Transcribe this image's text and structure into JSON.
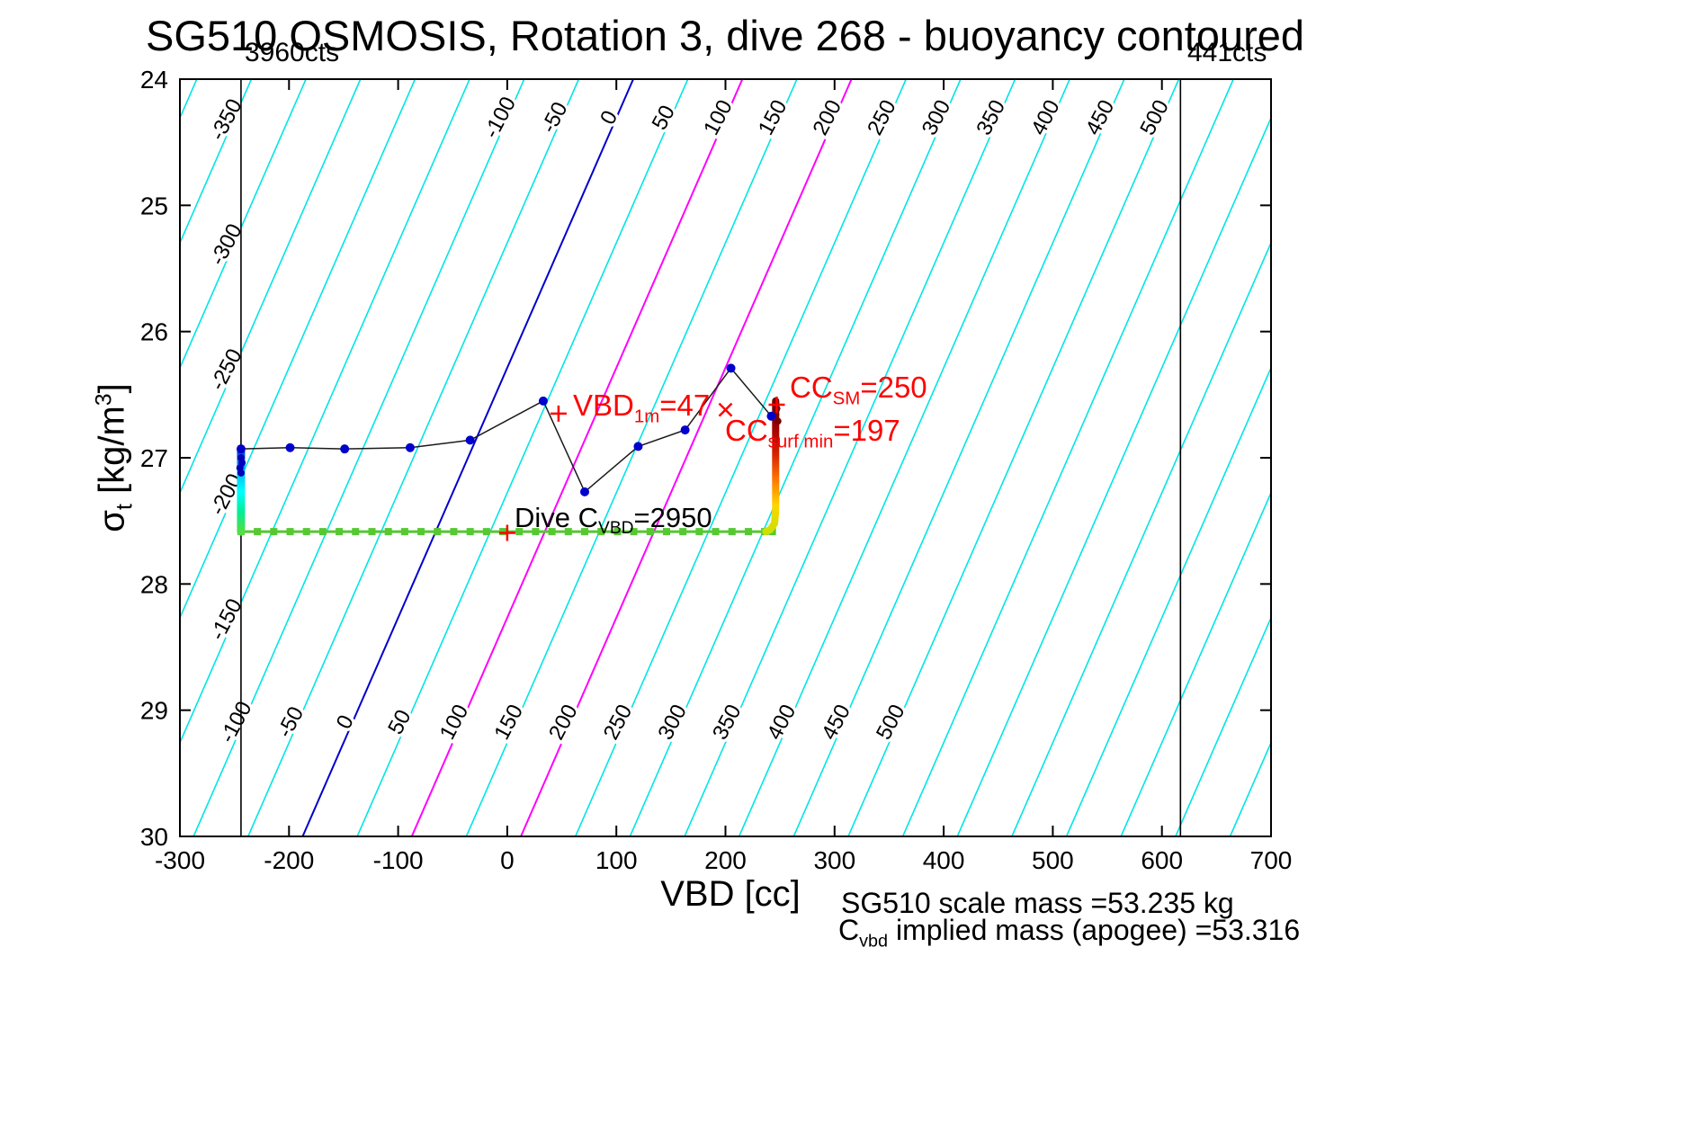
{
  "ylabel_parts": {
    "sym": "σ",
    "sub": "t",
    "mid": " [kg/m",
    "sup": "3",
    "end": "]"
  },
  "annotations": {
    "vbd_1m": {
      "pre": "VBD",
      "sub": "1m",
      "post": "=47"
    },
    "cc_sm": {
      "pre": "CC",
      "sub": "SM",
      "post": "=250"
    },
    "cc_surf_min": {
      "pre": "CC",
      "sub": "surf min",
      "post": "=197"
    },
    "dive_cvbd": {
      "pre": "Dive C",
      "sub": "VBD",
      "post": "=2950"
    }
  },
  "footer": {
    "scale_mass": "SG510 scale mass =53.235 kg",
    "implied_mass": {
      "pre": "C",
      "sub": "vbd",
      "post": " implied mass (apogee) =53.316"
    }
  },
  "chart_data": {
    "type": "line",
    "title": "SG510 OSMOSIS, Rotation 3, dive 268 - buoyancy contoured",
    "xlabel": "VBD [cc]",
    "ylabel": "sigma_t [kg/m^3]",
    "xlim": [
      -300,
      700
    ],
    "ylim": [
      24,
      30
    ],
    "y_increases_downward": true,
    "grid": false,
    "x_ticks": [
      -300,
      -200,
      -100,
      0,
      100,
      200,
      300,
      400,
      500,
      600,
      700
    ],
    "y_ticks": [
      24,
      25,
      26,
      27,
      28,
      29,
      30
    ],
    "contours": {
      "unit": "buoyancy cts",
      "draw_min": -400,
      "draw_max": 850,
      "step": 50,
      "offset_cc_at_sigma27": -36,
      "slope_cc_per_sigma": -50.5,
      "label_values_top_bottom": [
        -100,
        -50,
        0,
        50,
        100,
        150,
        200,
        250,
        300,
        350,
        400,
        450,
        500
      ],
      "label_values_left": [
        -350,
        -300,
        -250,
        -200,
        -150
      ],
      "label_sigma_top": 24.33,
      "label_sigma_bottom": 29.12,
      "label_vbd_left": -252,
      "default_color": "#00E5E5",
      "zero_value": 0,
      "zero_color": "#0000CC",
      "magenta_values": [
        100,
        200
      ],
      "magenta_color": "#FF00FF",
      "label_color": "#000000"
    },
    "vbd_limit_lines": [
      {
        "vbd_cc": -244,
        "label": "3960cts"
      },
      {
        "vbd_cc": 617,
        "label": "441cts"
      }
    ],
    "apogee_track": {
      "color": "#1a1a1a",
      "marker_color": "#0000CC",
      "points": [
        [
          -244,
          26.93
        ],
        [
          -199,
          26.92
        ],
        [
          -149,
          26.93
        ],
        [
          -89,
          26.92
        ],
        [
          -34,
          26.86
        ],
        [
          33,
          26.55
        ],
        [
          71,
          27.27
        ],
        [
          120,
          26.91
        ],
        [
          163,
          26.78
        ],
        [
          205,
          26.29
        ],
        [
          242,
          26.67
        ]
      ]
    },
    "dive_cvbd_track": {
      "sigma": 27.585,
      "color": "#55C832",
      "vbd_points": [
        -244,
        -229,
        -214,
        -199,
        -184,
        -169,
        -154,
        -139,
        -124,
        -109,
        -94,
        -79,
        -64,
        -49,
        -34,
        -19,
        -4,
        11,
        26,
        41,
        56,
        71,
        86,
        101,
        116,
        131,
        146,
        161,
        176,
        191,
        206,
        221,
        236,
        243
      ]
    },
    "climb_profile_left": {
      "vbd_cc": -244,
      "sigma_top": 26.95,
      "sigma_bottom": 27.585,
      "gradient": [
        "#0044DD",
        "#00BBEE",
        "#00FFFF",
        "#00EE99",
        "#55DD44"
      ]
    },
    "climb_profile_right": {
      "points": [
        [
          246,
          26.55
        ],
        [
          246,
          27.42
        ],
        [
          245,
          27.52
        ],
        [
          241,
          27.57
        ],
        [
          237,
          27.585
        ]
      ],
      "gradient": [
        "#660000",
        "#A00000",
        "#D42000",
        "#FF7700",
        "#FFD500",
        "#CCE000"
      ]
    },
    "cc_sm_dots": {
      "color": "#7A0000",
      "points": [
        [
          246,
          26.56
        ],
        [
          247,
          26.61
        ],
        [
          246,
          26.66
        ],
        [
          248,
          26.71
        ]
      ]
    },
    "left_top_dots": {
      "color": "#0000BB",
      "points": [
        [
          -244,
          27.0
        ],
        [
          -243,
          27.04
        ],
        [
          -245,
          27.08
        ],
        [
          -244,
          27.12
        ]
      ]
    },
    "markers": [
      {
        "type": "plus",
        "vbd": 47,
        "sigma": 26.65,
        "color": "#FF0000"
      },
      {
        "type": "x",
        "vbd": 200,
        "sigma": 26.62,
        "color": "#FF0000"
      },
      {
        "type": "plus",
        "vbd": 247,
        "sigma": 26.58,
        "color": "#FF0000"
      },
      {
        "type": "plus",
        "vbd": 0,
        "sigma": 27.595,
        "color": "#FF0000"
      }
    ]
  }
}
